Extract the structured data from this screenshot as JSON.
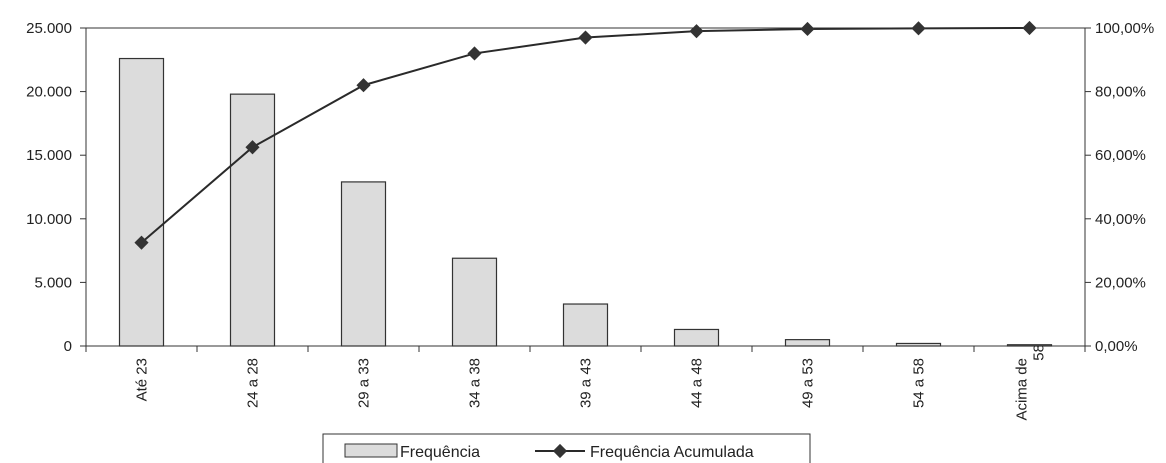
{
  "chart_data": {
    "type": "bar",
    "categories": [
      "Até 23",
      "24 a 28",
      "29 a 33",
      "34 a 38",
      "39 a 43",
      "44 a 48",
      "49 a 53",
      "54 a 58",
      "Acima de 58"
    ],
    "series": [
      {
        "name": "Frequência",
        "type": "bar",
        "axis": "left",
        "values": [
          22600,
          19800,
          12900,
          6900,
          3300,
          1300,
          500,
          200,
          100
        ]
      },
      {
        "name": "Frequência Acumulada",
        "type": "line",
        "axis": "right",
        "values": [
          32.5,
          62.5,
          82.0,
          92.0,
          97.0,
          99.0,
          99.7,
          99.9,
          100.0
        ]
      }
    ],
    "y_left": {
      "lim": [
        0,
        25000
      ],
      "ticks": [
        0,
        5000,
        10000,
        15000,
        20000,
        25000
      ],
      "tick_labels": [
        "0",
        "5.000",
        "10.000",
        "15.000",
        "20.000",
        "25.000"
      ]
    },
    "y_right": {
      "lim": [
        0,
        100
      ],
      "ticks": [
        0,
        20,
        40,
        60,
        80,
        100
      ],
      "tick_labels": [
        "0,00%",
        "20,00%",
        "40,00%",
        "60,00%",
        "80,00%",
        "100,00%"
      ]
    },
    "grid": false,
    "legend": "bottom",
    "title": "",
    "xlabel": "",
    "ylabel": "",
    "colors": {
      "bar_fill": "#dcdcdc",
      "bar_stroke": "#333333",
      "line": "#2a2a2a",
      "marker": "#333333",
      "axis": "#333333"
    }
  }
}
